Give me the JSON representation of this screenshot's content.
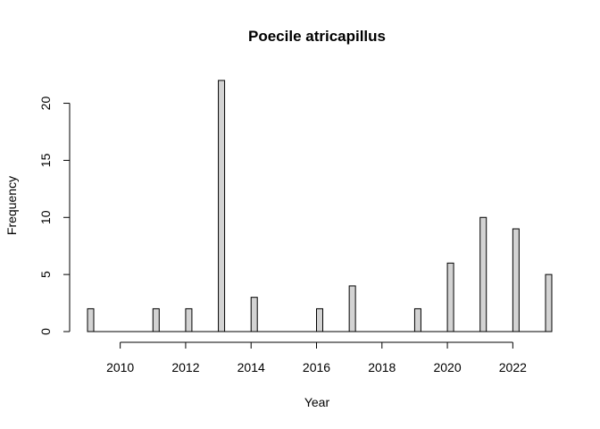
{
  "chart_data": {
    "type": "bar",
    "title": "Poecile atricapillus",
    "xlabel": "Year",
    "ylabel": "Frequency",
    "xlim": [
      2009,
      2023
    ],
    "ylim": [
      0,
      22
    ],
    "bin_width": 0.2,
    "x_ticks": [
      2010,
      2012,
      2014,
      2016,
      2018,
      2020,
      2022
    ],
    "y_ticks": [
      0,
      5,
      10,
      15,
      20
    ],
    "bar_color": "#d3d3d3",
    "bars": [
      {
        "year": 2009,
        "value": 2
      },
      {
        "year": 2011,
        "value": 2
      },
      {
        "year": 2012,
        "value": 2
      },
      {
        "year": 2013,
        "value": 22
      },
      {
        "year": 2014,
        "value": 3
      },
      {
        "year": 2016,
        "value": 2
      },
      {
        "year": 2017,
        "value": 4
      },
      {
        "year": 2019,
        "value": 2
      },
      {
        "year": 2020,
        "value": 6
      },
      {
        "year": 2021,
        "value": 10
      },
      {
        "year": 2022,
        "value": 9
      },
      {
        "year": 2023,
        "value": 5
      }
    ]
  }
}
